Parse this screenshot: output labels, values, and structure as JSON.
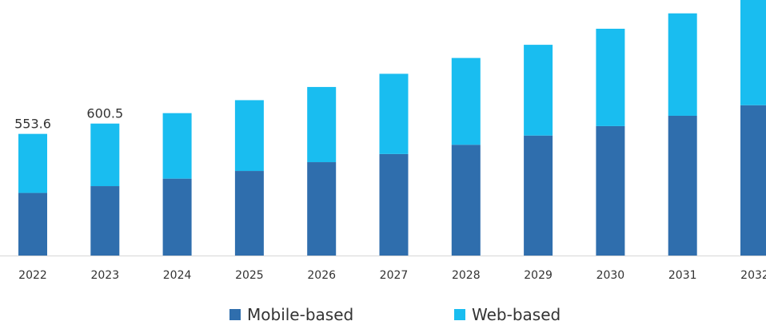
{
  "colors": {
    "mobile": "#2f6ead",
    "web": "#19bdf0",
    "axis": "#d6d6d6",
    "text": "#333333"
  },
  "legend": {
    "mobile_label": "Mobile-based",
    "web_label": "Web-based"
  },
  "chart_data": {
    "type": "bar",
    "stacked": true,
    "categories": [
      "2022",
      "2023",
      "2024",
      "2025",
      "2026",
      "2027",
      "2028",
      "2029",
      "2030",
      "2031",
      "2032"
    ],
    "series": [
      {
        "name": "Mobile-based",
        "values": [
          285,
          316,
          350,
          385,
          425,
          462,
          504,
          546,
          589,
          636,
          684
        ]
      },
      {
        "name": "Web-based",
        "values": [
          268.6,
          284.5,
          298,
          322,
          342,
          365,
          395,
          413,
          443,
          466,
          492
        ]
      }
    ],
    "data_labels": [
      {
        "category": "2022",
        "label": "553.6"
      },
      {
        "category": "2023",
        "label": "600.5"
      }
    ],
    "ylim": [
      0,
      1200
    ],
    "grid": false,
    "legend_position": "bottom"
  }
}
